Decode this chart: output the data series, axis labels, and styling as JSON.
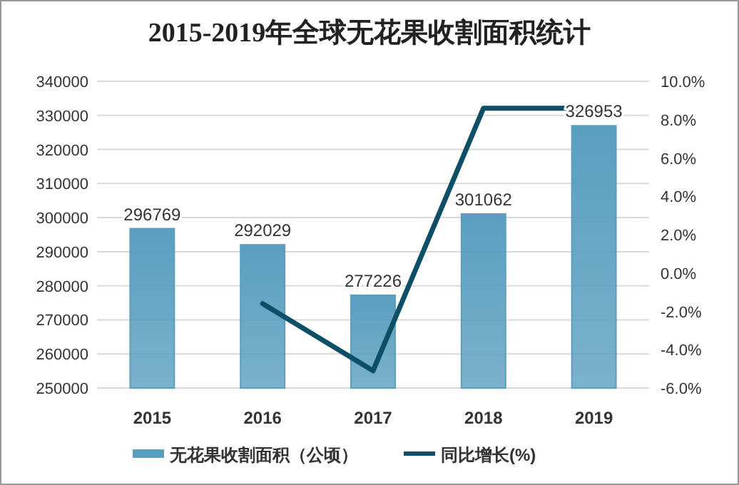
{
  "chart_data": {
    "type": "bar",
    "title": "2015-2019年全球无花果收割面积统计",
    "categories": [
      "2015",
      "2016",
      "2017",
      "2018",
      "2019"
    ],
    "series": [
      {
        "name": "无花果收割面积（公顷）",
        "color": "#5a9ec0",
        "values": [
          296769,
          292029,
          277226,
          301062,
          326953
        ],
        "value_labels": [
          "296769",
          "292029",
          "277226",
          "301062",
          "326953"
        ]
      },
      {
        "name": "同比增长(%)",
        "type": "line",
        "axis": "y2",
        "color": "#0d4f66",
        "values": [
          null,
          -1.6,
          -5.1,
          8.6,
          8.6
        ]
      }
    ],
    "ylim": [
      250000,
      340000
    ],
    "yticks": [
      250000,
      260000,
      270000,
      280000,
      290000,
      300000,
      310000,
      320000,
      330000,
      340000
    ],
    "y2lim": [
      -6,
      10
    ],
    "y2ticks": [
      {
        "value": -6,
        "label": "-6.0%"
      },
      {
        "value": -4,
        "label": "-4.0%"
      },
      {
        "value": -2,
        "label": "-2.0%"
      },
      {
        "value": 0,
        "label": "0.0%"
      },
      {
        "value": 2,
        "label": "2.0%"
      },
      {
        "value": 4,
        "label": "4.0%"
      },
      {
        "value": 6,
        "label": "6.0%"
      },
      {
        "value": 8,
        "label": "8.0%"
      },
      {
        "value": 10,
        "label": "10.0%"
      }
    ],
    "grid": "y",
    "legend": "bottom",
    "marker": "none",
    "line_style": "solid"
  }
}
